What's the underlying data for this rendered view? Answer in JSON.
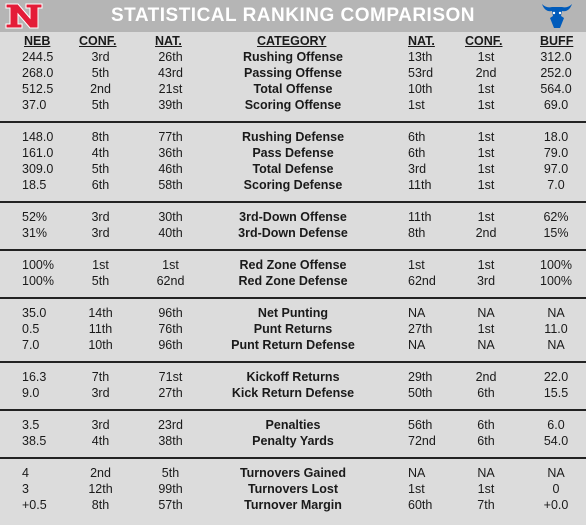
{
  "title": "STATISTICAL RANKING COMPARISON",
  "headers": {
    "neb": "NEB",
    "neb_conf": "CONF.",
    "neb_nat": "NAT.",
    "category": "CATEGORY",
    "buff_nat": "NAT.",
    "buff_conf": "CONF.",
    "buff": "BUFF"
  },
  "rows": [
    [
      "244.5",
      "3rd",
      "26th",
      "Rushing Offense",
      "13th",
      "1st",
      "312.0"
    ],
    [
      "268.0",
      "5th",
      "43rd",
      "Passing Offense",
      "53rd",
      "2nd",
      "252.0"
    ],
    [
      "512.5",
      "2nd",
      "21st",
      "Total Offense",
      "10th",
      "1st",
      "564.0"
    ],
    [
      "37.0",
      "5th",
      "39th",
      "Scoring Offense",
      "1st",
      "1st",
      "69.0"
    ],
    [
      "148.0",
      "8th",
      "77th",
      "Rushing Defense",
      "6th",
      "1st",
      "18.0"
    ],
    [
      "161.0",
      "4th",
      "36th",
      "Pass Defense",
      "6th",
      "1st",
      "79.0"
    ],
    [
      "309.0",
      "5th",
      "46th",
      "Total Defense",
      "3rd",
      "1st",
      "97.0"
    ],
    [
      "18.5",
      "6th",
      "58th",
      "Scoring Defense",
      "11th",
      "1st",
      "7.0"
    ],
    [
      "52%",
      "3rd",
      "30th",
      "3rd-Down Offense",
      "11th",
      "1st",
      "62%"
    ],
    [
      "31%",
      "3rd",
      "40th",
      "3rd-Down Defense",
      "8th",
      "2nd",
      "15%"
    ],
    [
      "100%",
      "1st",
      "1st",
      "Red Zone Offense",
      "1st",
      "1st",
      "100%"
    ],
    [
      "100%",
      "5th",
      "62nd",
      "Red Zone Defense",
      "62nd",
      "3rd",
      "100%"
    ],
    [
      "35.0",
      "14th",
      "96th",
      "Net Punting",
      "NA",
      "NA",
      "NA"
    ],
    [
      "0.5",
      "11th",
      "76th",
      "Punt Returns",
      "27th",
      "1st",
      "11.0"
    ],
    [
      "7.0",
      "10th",
      "96th",
      "Punt Return Defense",
      "NA",
      "NA",
      "NA"
    ],
    [
      "16.3",
      "7th",
      "71st",
      "Kickoff Returns",
      "29th",
      "2nd",
      "22.0"
    ],
    [
      "9.0",
      "3rd",
      "27th",
      "Kick Return Defense",
      "50th",
      "6th",
      "15.5"
    ],
    [
      "3.5",
      "3rd",
      "23rd",
      "Penalties",
      "56th",
      "6th",
      "6.0"
    ],
    [
      "38.5",
      "4th",
      "38th",
      "Penalty Yards",
      "72nd",
      "6th",
      "54.0"
    ],
    [
      "4",
      "2nd",
      "5th",
      "Turnovers Gained",
      "NA",
      "NA",
      "NA"
    ],
    [
      "3",
      "12th",
      "99th",
      "Turnovers Lost",
      "1st",
      "1st",
      "0"
    ],
    [
      "+0.5",
      "8th",
      "57th",
      "Turnover Margin",
      "60th",
      "7th",
      "+0.0"
    ]
  ],
  "colors": {
    "header_bg": "#b5b5b5",
    "body_bg": "#dcdcdc",
    "nebraska_red": "#e41c38",
    "buffalo_blue": "#005bbb"
  },
  "logos": {
    "left": "nebraska-n-logo",
    "right": "buffalo-bull-logo"
  }
}
